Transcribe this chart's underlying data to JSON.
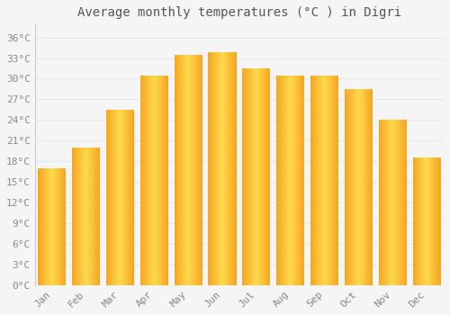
{
  "title": "Average monthly temperatures (°C ) in Digri",
  "months": [
    "Jan",
    "Feb",
    "Mar",
    "Apr",
    "May",
    "Jun",
    "Jul",
    "Aug",
    "Sep",
    "Oct",
    "Nov",
    "Dec"
  ],
  "temperatures": [
    17,
    20,
    25.5,
    30.5,
    33.5,
    33.8,
    31.5,
    30.5,
    30.5,
    28.5,
    24,
    18.5
  ],
  "ytick_values": [
    0,
    3,
    6,
    9,
    12,
    15,
    18,
    21,
    24,
    27,
    30,
    33,
    36
  ],
  "ytick_labels": [
    "0°C",
    "3°C",
    "6°C",
    "9°C",
    "12°C",
    "15°C",
    "18°C",
    "21°C",
    "24°C",
    "27°C",
    "30°C",
    "33°C",
    "36°C"
  ],
  "ylim": [
    0,
    38
  ],
  "background_color": "#f5f5f5",
  "grid_color": "#e8e8e8",
  "tick_color": "#888888",
  "title_color": "#555555",
  "title_fontsize": 10,
  "tick_fontsize": 8,
  "bar_color_left": "#F5A623",
  "bar_color_center": "#FFCC44",
  "bar_color_right": "#F5A623",
  "bar_width": 0.82
}
